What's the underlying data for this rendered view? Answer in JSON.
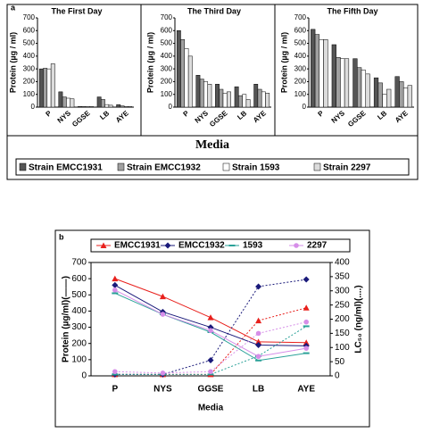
{
  "chart_data": [
    {
      "type": "bar",
      "panel_label": "a",
      "xlabel": "Media",
      "ylabel": "Protein (µg / ml)",
      "ylim": [
        0,
        700
      ],
      "yticks": [
        0,
        100,
        200,
        300,
        400,
        500,
        600,
        700
      ],
      "categories": [
        "P",
        "NYS",
        "GGSE",
        "LB",
        "AYE"
      ],
      "series": [
        {
          "name": "Strain EMCC1931",
          "color": "#555555"
        },
        {
          "name": "Strain EMCC1932",
          "color": "#a0a0a0"
        },
        {
          "name": "Strain 1593",
          "color": "#ffffff"
        },
        {
          "name": "Strain 2297",
          "color": "#dcdcdc"
        }
      ],
      "panels": [
        {
          "title": "The First Day",
          "values": [
            [
              300,
              120,
              5,
              80,
              20
            ],
            [
              305,
              80,
              5,
              60,
              10
            ],
            [
              300,
              70,
              5,
              20,
              5
            ],
            [
              340,
              65,
              5,
              15,
              5
            ]
          ]
        },
        {
          "title": "The Third Day",
          "values": [
            [
              600,
              250,
              180,
              160,
              180
            ],
            [
              530,
              220,
              140,
              90,
              140
            ],
            [
              460,
              200,
              110,
              100,
              120
            ],
            [
              400,
              180,
              120,
              60,
              110
            ]
          ]
        },
        {
          "title": "The Fifth Day",
          "values": [
            [
              610,
              490,
              380,
              230,
              240
            ],
            [
              570,
              390,
              310,
              190,
              200
            ],
            [
              530,
              380,
              290,
              100,
              150
            ],
            [
              530,
              380,
              260,
              140,
              170
            ]
          ]
        }
      ]
    },
    {
      "type": "line",
      "panel_label": "b",
      "xlabel": "Media",
      "ylabel": "Protein (µg/ml)(——)",
      "y2label": "LC₅₀ (ng/ml)(....)",
      "ylim": [
        0,
        700
      ],
      "yticks": [
        0,
        100,
        200,
        300,
        400,
        500,
        600,
        700
      ],
      "y2lim": [
        0,
        400
      ],
      "y2ticks": [
        0,
        50,
        100,
        150,
        200,
        250,
        300,
        350,
        400
      ],
      "categories": [
        "P",
        "NYS",
        "GGSE",
        "LB",
        "AYE"
      ],
      "series": [
        {
          "name": "EMCC1931",
          "color": "#e8201c",
          "marker": "triangle",
          "values": [
            600,
            490,
            360,
            210,
            205
          ],
          "y2_values": [
            5,
            5,
            5,
            195,
            240
          ]
        },
        {
          "name": "EMCC1932",
          "color": "#1a1a7a",
          "marker": "diamond",
          "values": [
            560,
            395,
            300,
            190,
            185
          ],
          "y2_values": [
            5,
            5,
            55,
            315,
            340
          ]
        },
        {
          "name": "1593",
          "color": "#2aa198",
          "marker": "dash",
          "values": [
            510,
            380,
            270,
            95,
            140
          ],
          "y2_values": [
            5,
            5,
            5,
            70,
            175
          ]
        },
        {
          "name": "2297",
          "color": "#d68ee8",
          "marker": "circle",
          "values": [
            530,
            380,
            280,
            120,
            170
          ],
          "y2_values": [
            15,
            10,
            15,
            150,
            190
          ]
        }
      ]
    }
  ]
}
